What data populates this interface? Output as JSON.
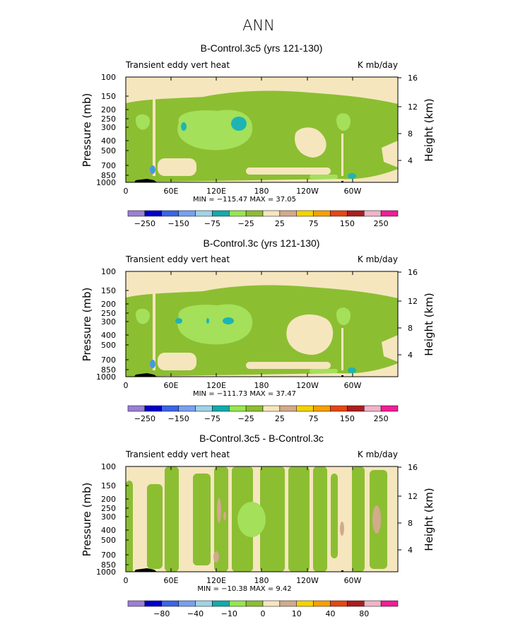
{
  "main_title": "ANN",
  "chart_data": [
    {
      "type": "heatmap",
      "title": "B-Control.3c5 (yrs 121-130)",
      "field": "Transient eddy vert heat",
      "units": "K mb/day",
      "xlabel": "",
      "ylabel": "Pressure (mb)",
      "ylabel_right": "Height (km)",
      "x_ticks": [
        "0",
        "60E",
        "120E",
        "180",
        "120W",
        "60W"
      ],
      "x_range": [
        0,
        360
      ],
      "y_ticks": [
        "100",
        "150",
        "200",
        "250",
        "300",
        "400",
        "500",
        "700",
        "850",
        "1000"
      ],
      "y_range": [
        1000,
        100
      ],
      "height_ticks": [
        "16",
        "12",
        "8",
        "4"
      ],
      "stats": "MIN = −115.47  MAX =  37.05",
      "min": -115.47,
      "max": 37.05,
      "colorbar_labels": [
        "−250",
        "−150",
        "−75",
        "−25",
        "25",
        "75",
        "150",
        "250"
      ],
      "colorbar_levels": [
        -250,
        -200,
        -150,
        -100,
        -75,
        -50,
        -25,
        0,
        25,
        50,
        75,
        100,
        150,
        200,
        250
      ]
    },
    {
      "type": "heatmap",
      "title": "B-Control.3c (yrs 121-130)",
      "field": "Transient eddy vert heat",
      "units": "K mb/day",
      "xlabel": "",
      "ylabel": "Pressure (mb)",
      "ylabel_right": "Height (km)",
      "x_ticks": [
        "0",
        "60E",
        "120E",
        "180",
        "120W",
        "60W"
      ],
      "x_range": [
        0,
        360
      ],
      "y_ticks": [
        "100",
        "150",
        "200",
        "250",
        "300",
        "400",
        "500",
        "700",
        "850",
        "1000"
      ],
      "y_range": [
        1000,
        100
      ],
      "height_ticks": [
        "16",
        "12",
        "8",
        "4"
      ],
      "stats": "MIN = −111.73  MAX =  37.47",
      "min": -111.73,
      "max": 37.47,
      "colorbar_labels": [
        "−250",
        "−150",
        "−75",
        "−25",
        "25",
        "75",
        "150",
        "250"
      ],
      "colorbar_levels": [
        -250,
        -200,
        -150,
        -100,
        -75,
        -50,
        -25,
        0,
        25,
        50,
        75,
        100,
        150,
        200,
        250
      ]
    },
    {
      "type": "heatmap",
      "title": "B-Control.3c5 - B-Control.3c",
      "field": "Transient eddy vert heat",
      "units": "K mb/day",
      "xlabel": "",
      "ylabel": "Pressure (mb)",
      "ylabel_right": "Height (km)",
      "x_ticks": [
        "0",
        "60E",
        "120E",
        "180",
        "120W",
        "60W"
      ],
      "x_range": [
        0,
        360
      ],
      "y_ticks": [
        "100",
        "150",
        "200",
        "250",
        "300",
        "400",
        "500",
        "700",
        "850",
        "1000"
      ],
      "y_range": [
        1000,
        100
      ],
      "height_ticks": [
        "16",
        "12",
        "8",
        "4"
      ],
      "stats": "MIN = −10.38  MAX =   9.42",
      "min": -10.38,
      "max": 9.42,
      "colorbar_labels": [
        "−80",
        "−40",
        "−10",
        "0",
        "10",
        "40",
        "80"
      ],
      "colorbar_levels": [
        -100,
        -80,
        -60,
        -40,
        -20,
        -10,
        -5,
        0,
        5,
        10,
        20,
        40,
        60,
        80,
        100
      ]
    }
  ],
  "colors": {
    "scale": [
      "#9b7fd4",
      "#0000c8",
      "#3c64e6",
      "#78a0f0",
      "#a0d2e6",
      "#14aaaa",
      "#96e650",
      "#8cbe32",
      "#f5e6be",
      "#d2aa8c",
      "#f5d200",
      "#f5a000",
      "#e64614",
      "#aa1e1e",
      "#f0b4c8",
      "#f01e96"
    ],
    "light_green": "#a4e05a",
    "green": "#8cbe32",
    "cream": "#f5e6be",
    "tan": "#d2aa8c",
    "teal": "#1eb4b4",
    "blue": "#5a8cf0",
    "black": "#000000"
  }
}
